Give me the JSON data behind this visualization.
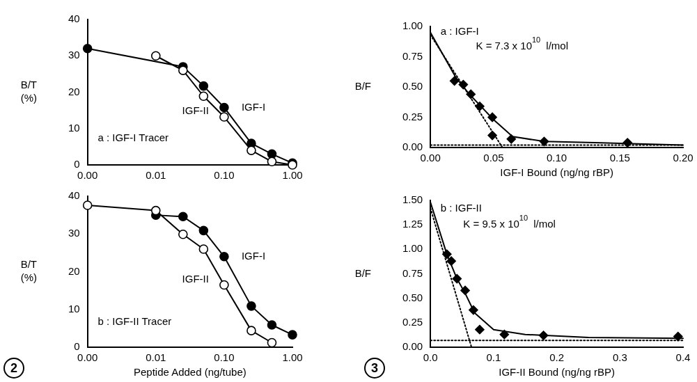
{
  "chart_data": [
    {
      "type": "line",
      "x": [
        0.001,
        0.01,
        0.025,
        0.05,
        0.1,
        0.25,
        0.5,
        1.0
      ],
      "log": "x",
      "xlim": [
        0.001,
        1
      ],
      "xticks": [
        {
          "value": 0.001,
          "label": "0.00"
        },
        {
          "value": 0.01,
          "label": "0.01"
        },
        {
          "value": 0.1,
          "label": "0.10"
        },
        {
          "value": 1,
          "label": "1.00"
        }
      ],
      "ylim": [
        0,
        40
      ],
      "yticks": [
        0,
        10,
        20,
        30,
        40
      ],
      "ylabel": "B/T (%)",
      "grid": false,
      "legend": false,
      "marker": "circle",
      "line_style": "solid",
      "annotations": [
        "a : IGF-I Tracer"
      ],
      "series": [
        {
          "name": "IGF-I",
          "color": "#000000",
          "values": [
            32,
            null,
            27,
            21.7,
            15.8,
            5.9,
            3.0,
            0.5
          ]
        },
        {
          "name": "IGF-II",
          "color": "#000000",
          "values": [
            null,
            30,
            26,
            18.9,
            13.2,
            4.0,
            0.9,
            0
          ]
        }
      ]
    },
    {
      "type": "line",
      "x": [
        0.001,
        0.01,
        0.025,
        0.05,
        0.1,
        0.25,
        0.5,
        1.0
      ],
      "log": "x",
      "xlim": [
        0.001,
        1
      ],
      "xticks": [
        {
          "value": 0.001,
          "label": "0.00"
        },
        {
          "value": 0.01,
          "label": "0.01"
        },
        {
          "value": 0.1,
          "label": "0.10"
        },
        {
          "value": 1,
          "label": "1.00"
        }
      ],
      "ylim": [
        0,
        40
      ],
      "yticks": [
        0,
        10,
        20,
        30,
        40
      ],
      "ylabel": "B/T (%)",
      "xlabel": "Peptide Added (ng/tube)",
      "grid": false,
      "legend": false,
      "marker": "circle",
      "line_style": "solid",
      "annotations": [
        "b : IGF-II Tracer",
        "2"
      ],
      "series": [
        {
          "name": "IGF-I",
          "color": "#000000",
          "values": [
            null,
            35,
            34.6,
            30.9,
            24.0,
            10.9,
            5.9,
            3.3
          ]
        },
        {
          "name": "IGF-II",
          "color": "#000000",
          "values": [
            37.6,
            36.2,
            29.9,
            26.0,
            16.5,
            4.4,
            1.2,
            null
          ]
        }
      ]
    },
    {
      "type": "scatter",
      "xlim": [
        0,
        0.2
      ],
      "xticks": [
        {
          "value": 0,
          "label": "0.00"
        },
        {
          "value": 0.05,
          "label": "0.05"
        },
        {
          "value": 0.1,
          "label": "0.10"
        },
        {
          "value": 0.15,
          "label": "0.15"
        },
        {
          "value": 0.2,
          "label": "0.20"
        }
      ],
      "ylim": [
        0,
        1
      ],
      "yticks": [
        {
          "value": 0,
          "label": "0.00"
        },
        {
          "value": 0.25,
          "label": "0.25"
        },
        {
          "value": 0.5,
          "label": "0.50"
        },
        {
          "value": 0.75,
          "label": "0.75"
        },
        {
          "value": 1,
          "label": "1.00"
        }
      ],
      "ylabel": "B/F",
      "xlabel": "IGF-I Bound (ng/ng rBP)",
      "grid": false,
      "legend": false,
      "marker": "diamond",
      "annotations": [
        "a : IGF-I",
        "K = 7.3 x 10$^{10}$ l/mol"
      ],
      "series": [
        {
          "type": "scatter",
          "color": "#000000",
          "x": [
            0.019,
            0.026,
            0.032,
            0.039,
            0.049,
            0.049,
            0.064,
            0.09,
            0.156
          ],
          "values": [
            0.55,
            0.52,
            0.44,
            0.34,
            0.25,
            0.1,
            0.07,
            0.05,
            0.04
          ]
        },
        {
          "type": "line",
          "color": "#000000",
          "marker": "none",
          "line_style": "solid",
          "x": [
            0,
            0.02,
            0.03,
            0.04,
            0.05,
            0.065,
            0.09,
            0.13,
            0.2
          ],
          "values": [
            0.95,
            0.58,
            0.45,
            0.34,
            0.23,
            0.09,
            0.05,
            0.04,
            0.02
          ]
        },
        {
          "type": "line",
          "color": "#000000",
          "marker": "none",
          "line_style": "dotted",
          "x": [
            0,
            0.057
          ],
          "values": [
            0.93,
            0
          ]
        },
        {
          "type": "line",
          "color": "#000000",
          "marker": "none",
          "line_style": "dotted",
          "x": [
            0,
            0.2
          ],
          "values": [
            0.02,
            0.02
          ]
        }
      ]
    },
    {
      "type": "scatter",
      "xlim": [
        0,
        0.4
      ],
      "xticks": [
        {
          "value": 0,
          "label": "0.0"
        },
        0.1,
        0.2,
        0.3,
        0.4
      ],
      "ylim": [
        0,
        1.5
      ],
      "yticks": [
        {
          "value": 0,
          "label": "0.00"
        },
        0.25,
        {
          "value": 0.5,
          "label": "0.50"
        },
        0.75,
        {
          "value": 1,
          "label": "1.00"
        },
        1.25,
        {
          "value": 1.5,
          "label": "1.50"
        }
      ],
      "ylabel": "B/F",
      "xlabel": "IGF-II Bound (ng/ng rBP)",
      "grid": false,
      "legend": false,
      "marker": "diamond",
      "annotations": [
        "b : IGF-II",
        "K = 9.5 x 10$^{10}$ l/mol",
        "3"
      ],
      "series": [
        {
          "type": "scatter",
          "color": "#000000",
          "x": [
            0.026,
            0.033,
            0.042,
            0.055,
            0.068,
            0.078,
            0.117,
            0.179,
            0.392
          ],
          "values": [
            0.95,
            0.88,
            0.7,
            0.58,
            0.38,
            0.18,
            0.13,
            0.12,
            0.11
          ]
        },
        {
          "type": "line",
          "color": "#000000",
          "marker": "none",
          "line_style": "solid",
          "x": [
            0,
            0.026,
            0.042,
            0.055,
            0.07,
            0.1,
            0.15,
            0.25,
            0.4
          ],
          "values": [
            1.48,
            0.95,
            0.7,
            0.55,
            0.35,
            0.18,
            0.13,
            0.1,
            0.09
          ]
        },
        {
          "type": "line",
          "color": "#000000",
          "marker": "none",
          "line_style": "dotted",
          "x": [
            0,
            0.065
          ],
          "values": [
            1.42,
            0
          ]
        },
        {
          "type": "line",
          "color": "#000000",
          "marker": "none",
          "line_style": "dotted",
          "x": [
            0,
            0.4
          ],
          "values": [
            0.07,
            0.07
          ]
        }
      ]
    }
  ]
}
